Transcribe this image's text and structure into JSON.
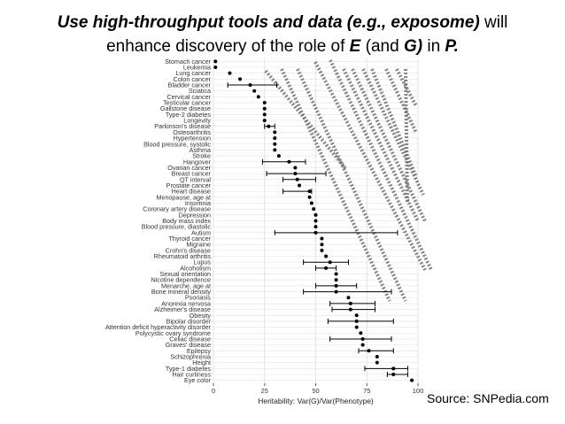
{
  "title": {
    "pre": "Use high-throughput tools and data (e.g., exposome)",
    "mid1": " will",
    "line2a": "enhance discovery of the role of ",
    "e": "E",
    "line2b": " (and ",
    "g": "G)",
    "line2c": " in ",
    "p": "P."
  },
  "source": "Source: SNPedia.com",
  "chart_data": {
    "type": "scatter",
    "xlabel": "Heritability: Var(G)/Var(Phenotype)",
    "xlim": [
      0,
      100
    ],
    "xticks": [
      0,
      25,
      50,
      75,
      100
    ],
    "grid": true,
    "categories": [
      "Stomach cancer",
      "Leukemia",
      "Lung cancer",
      "Colon cancer",
      "Bladder cancer",
      "Sciatica",
      "Cervical cancer",
      "Testicular cancer",
      "Gallstone disease",
      "Type-2 diabetes",
      "Longevity",
      "Parkinson's disease",
      "Osteoarthritis",
      "Hypertension",
      "Blood pressure, systolic",
      "Asthma",
      "Stroke",
      "Hangover",
      "Ovarian cancer",
      "Breast cancer",
      "QT interval",
      "Prostate cancer",
      "Heart disease",
      "Menopause, age at",
      "Insomnia",
      "Coronary artery disease",
      "Depression",
      "Body mass index",
      "Blood pressure, diastolic",
      "Autism",
      "Thyroid cancer",
      "Migraine",
      "Crohn's disease",
      "Rheumatoid arthritis",
      "Lupus",
      "Alcoholism",
      "Sexual orientation",
      "Nicotine dependence",
      "Menarche, age at",
      "Bone mineral density",
      "Psoriasis",
      "Anorexia nervosa",
      "Alzheimer's disease",
      "Obesity",
      "Bipolar disorder",
      "Attention deficit hyperactivity disorder",
      "Polycystic ovary syndrome",
      "Celiac disease",
      "Graves' disease",
      "Epilepsy",
      "Schizophrenia",
      "Height",
      "Type-1 diabetes",
      "Hair curliness",
      "Eye color"
    ],
    "values": [
      1,
      1,
      8,
      13,
      18,
      20,
      22,
      25,
      25,
      25,
      25,
      27,
      30,
      30,
      30,
      30,
      32,
      37,
      40,
      40,
      41,
      42,
      47,
      47,
      48,
      49,
      50,
      50,
      50,
      50,
      53,
      53,
      53,
      55,
      57,
      55,
      60,
      60,
      60,
      60,
      66,
      67,
      67,
      70,
      70,
      70,
      72,
      73,
      73,
      76,
      80,
      80,
      88,
      88,
      97
    ],
    "error_bars": [
      null,
      null,
      null,
      null,
      [
        7,
        31
      ],
      null,
      null,
      null,
      null,
      null,
      null,
      [
        25,
        30
      ],
      null,
      null,
      null,
      null,
      null,
      [
        24,
        45
      ],
      null,
      [
        26,
        55
      ],
      [
        34,
        50
      ],
      null,
      [
        34,
        48
      ],
      null,
      null,
      null,
      null,
      null,
      null,
      [
        30,
        90
      ],
      null,
      null,
      null,
      null,
      [
        44,
        66
      ],
      [
        50,
        60
      ],
      null,
      null,
      [
        50,
        70
      ],
      [
        44,
        87
      ],
      null,
      [
        57,
        79
      ],
      [
        58,
        79
      ],
      null,
      [
        56,
        88
      ],
      null,
      null,
      [
        57,
        87
      ],
      null,
      [
        71,
        88
      ],
      null,
      null,
      [
        74,
        95
      ],
      [
        85,
        95
      ],
      null
    ],
    "colors": {
      "point": "#000000",
      "grid": "#e3e3e3",
      "overlay": "#707070"
    }
  }
}
